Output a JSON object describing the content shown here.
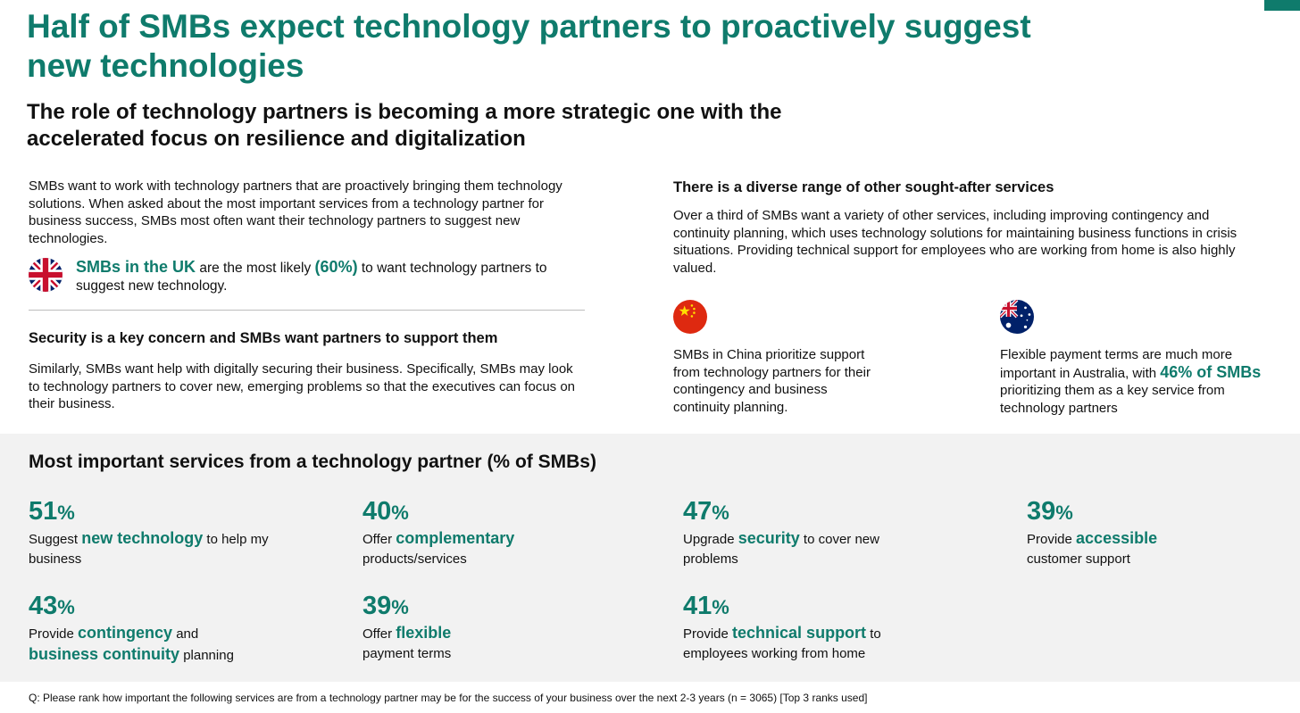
{
  "title": "Half of SMBs expect technology partners to proactively suggest new technologies",
  "subtitle": "The role of technology partners is becoming a more strategic one with the accelerated focus on resilience and digitalization",
  "left": {
    "intro": "SMBs want to work with technology partners that are proactively bringing them technology solutions. When asked about the most important services from a technology partner for business success, SMBs most often want their technology partners to suggest new technologies.",
    "uk_callout": {
      "lead": "SMBs in the UK",
      "mid": " are the most likely ",
      "value": "(60%)",
      "tail": " to want technology partners to suggest new technology."
    },
    "security_heading": "Security is a key concern and SMBs want partners to support them",
    "security_text": "Similarly, SMBs want help with digitally securing their business. Specifically, SMBs may look to technology partners to cover new, emerging problems so that the executives can focus on their business."
  },
  "right": {
    "heading": "There is a diverse range of other sought-after services",
    "text": "Over a third of SMBs want a variety of other services, including improving contingency and continuity planning, which uses technology solutions for maintaining business functions in crisis situations. Providing technical support for employees who are working from home is also highly valued.",
    "china_text": "SMBs in China prioritize support from technology partners for their contingency and business continuity planning.",
    "australia": {
      "pre": "Flexible payment terms are much more important in Australia, with ",
      "value": "46% of SMBs",
      "post": " prioritizing them as a key service from technology partners"
    }
  },
  "stats": {
    "title": "Most important services from a technology partner (% of SMBs)",
    "items": [
      {
        "value": "51",
        "pct": "%",
        "pre": "Suggest ",
        "hl": "new technology",
        "post": " to help my business"
      },
      {
        "value": "40",
        "pct": "%",
        "pre": "Offer ",
        "hl": "complementary",
        "post": " products/services"
      },
      {
        "value": "47",
        "pct": "%",
        "pre": "Upgrade ",
        "hl": "security",
        "post": " to cover new problems"
      },
      {
        "value": "39",
        "pct": "%",
        "pre": "Provide ",
        "hl": "accessible",
        "post": " customer support"
      },
      {
        "value": "43",
        "pct": "%",
        "pre": "Provide ",
        "hl": "contingency",
        "mid": " and",
        "hl2": "business continuity",
        "post": " planning"
      },
      {
        "value": "39",
        "pct": "%",
        "pre": "Offer ",
        "hl": "flexible",
        "post": " payment terms"
      },
      {
        "value": "41",
        "pct": "%",
        "pre": "Provide ",
        "hl": "technical support",
        "post": " to employees working from home"
      }
    ]
  },
  "footnote": "Q: Please rank how important the following services are from a technology partner may be for the success of your business over the next 2-3 years (n = 3065) [Top 3 ranks used]",
  "flags": {
    "uk": "uk-flag-icon",
    "china": "china-flag-icon",
    "australia": "australia-flag-icon"
  },
  "colors": {
    "accent": "#0f7b6c",
    "band": "#f2f2f2"
  }
}
